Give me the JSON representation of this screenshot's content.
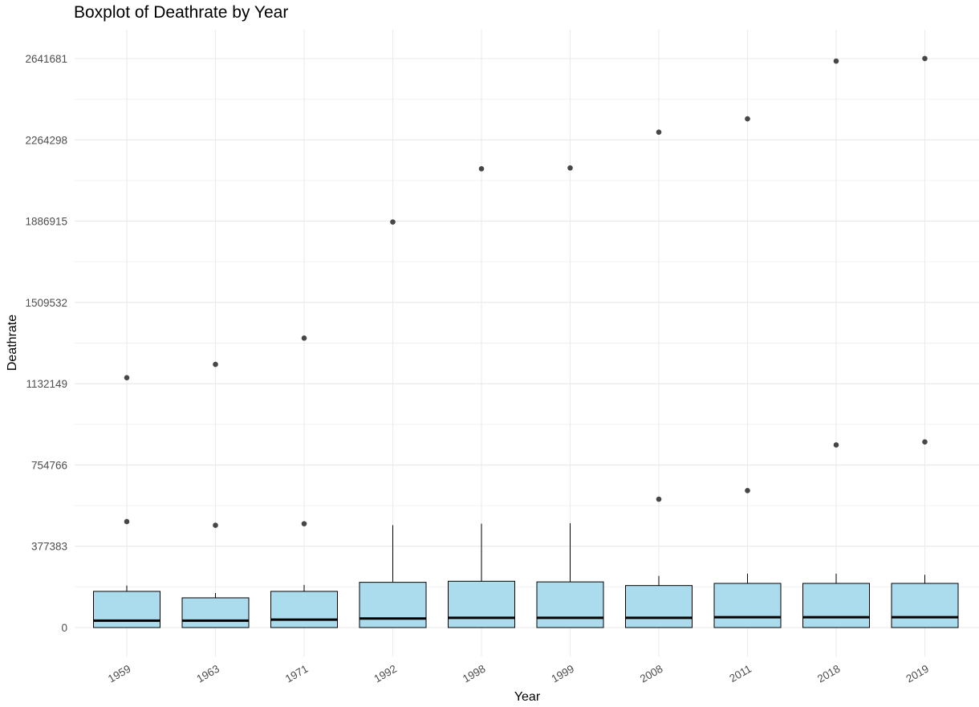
{
  "chart_data": {
    "type": "boxplot",
    "title": "Boxplot of Deathrate by Year",
    "xlabel": "Year",
    "ylabel": "Deathrate",
    "categories": [
      "1959",
      "1963",
      "1971",
      "1992",
      "1998",
      "1999",
      "2008",
      "2011",
      "2018",
      "2019"
    ],
    "y_ticks": [
      0,
      377383,
      754766,
      1132149,
      1509532,
      1886915,
      2264298,
      2641681
    ],
    "ylim": [
      -140000,
      2780000
    ],
    "grid": true,
    "box_fill": "#aadcee",
    "box_stroke": "#000000",
    "outlier_color": "#333333",
    "boxes": [
      {
        "min": 0,
        "q1": 0,
        "median": 32000,
        "q3": 168000,
        "max": 195000,
        "outliers": [
          492000,
          1160000
        ]
      },
      {
        "min": 0,
        "q1": 0,
        "median": 32000,
        "q3": 138000,
        "max": 160000,
        "outliers": [
          475000,
          1222000
        ]
      },
      {
        "min": 0,
        "q1": 0,
        "median": 37000,
        "q3": 168000,
        "max": 198000,
        "outliers": [
          482000,
          1344000
        ]
      },
      {
        "min": 0,
        "q1": 0,
        "median": 42000,
        "q3": 210000,
        "max": 475000,
        "outliers": [
          1883000
        ]
      },
      {
        "min": 0,
        "q1": 0,
        "median": 45000,
        "q3": 215000,
        "max": 482000,
        "outliers": [
          2130000
        ]
      },
      {
        "min": 0,
        "q1": 0,
        "median": 45000,
        "q3": 212000,
        "max": 485000,
        "outliers": [
          2134000
        ]
      },
      {
        "min": 0,
        "q1": 0,
        "median": 45000,
        "q3": 195000,
        "max": 240000,
        "outliers": [
          596000,
          2300000
        ]
      },
      {
        "min": 0,
        "q1": 0,
        "median": 48000,
        "q3": 205000,
        "max": 250000,
        "outliers": [
          636000,
          2362000
        ]
      },
      {
        "min": 0,
        "q1": 0,
        "median": 48000,
        "q3": 205000,
        "max": 250000,
        "outliers": [
          848000,
          2630000
        ]
      },
      {
        "min": 0,
        "q1": 0,
        "median": 48000,
        "q3": 205000,
        "max": 245000,
        "outliers": [
          862000,
          2642000
        ]
      }
    ]
  }
}
